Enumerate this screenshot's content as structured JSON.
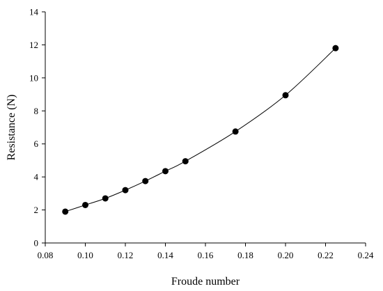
{
  "chart_data": {
    "type": "scatter",
    "xlabel": "Froude number",
    "ylabel": "Resistance (N)",
    "xlim": [
      0.08,
      0.24
    ],
    "ylim": [
      0,
      14
    ],
    "xticks": [
      "0.08",
      "0.10",
      "0.12",
      "0.14",
      "0.16",
      "0.18",
      "0.20",
      "0.22",
      "0.24"
    ],
    "yticks": [
      "0",
      "2",
      "4",
      "6",
      "8",
      "10",
      "12",
      "14"
    ],
    "grid": false,
    "legend": "none",
    "series": [
      {
        "x": [
          0.09,
          0.1,
          0.11,
          0.12,
          0.13,
          0.14,
          0.15,
          0.175,
          0.2,
          0.225
        ],
        "y": [
          1.9,
          2.3,
          2.7,
          3.2,
          3.75,
          4.35,
          4.95,
          6.75,
          8.95,
          11.8
        ],
        "marker": "filled-circle",
        "line": "smooth",
        "color": "#000000"
      }
    ]
  }
}
